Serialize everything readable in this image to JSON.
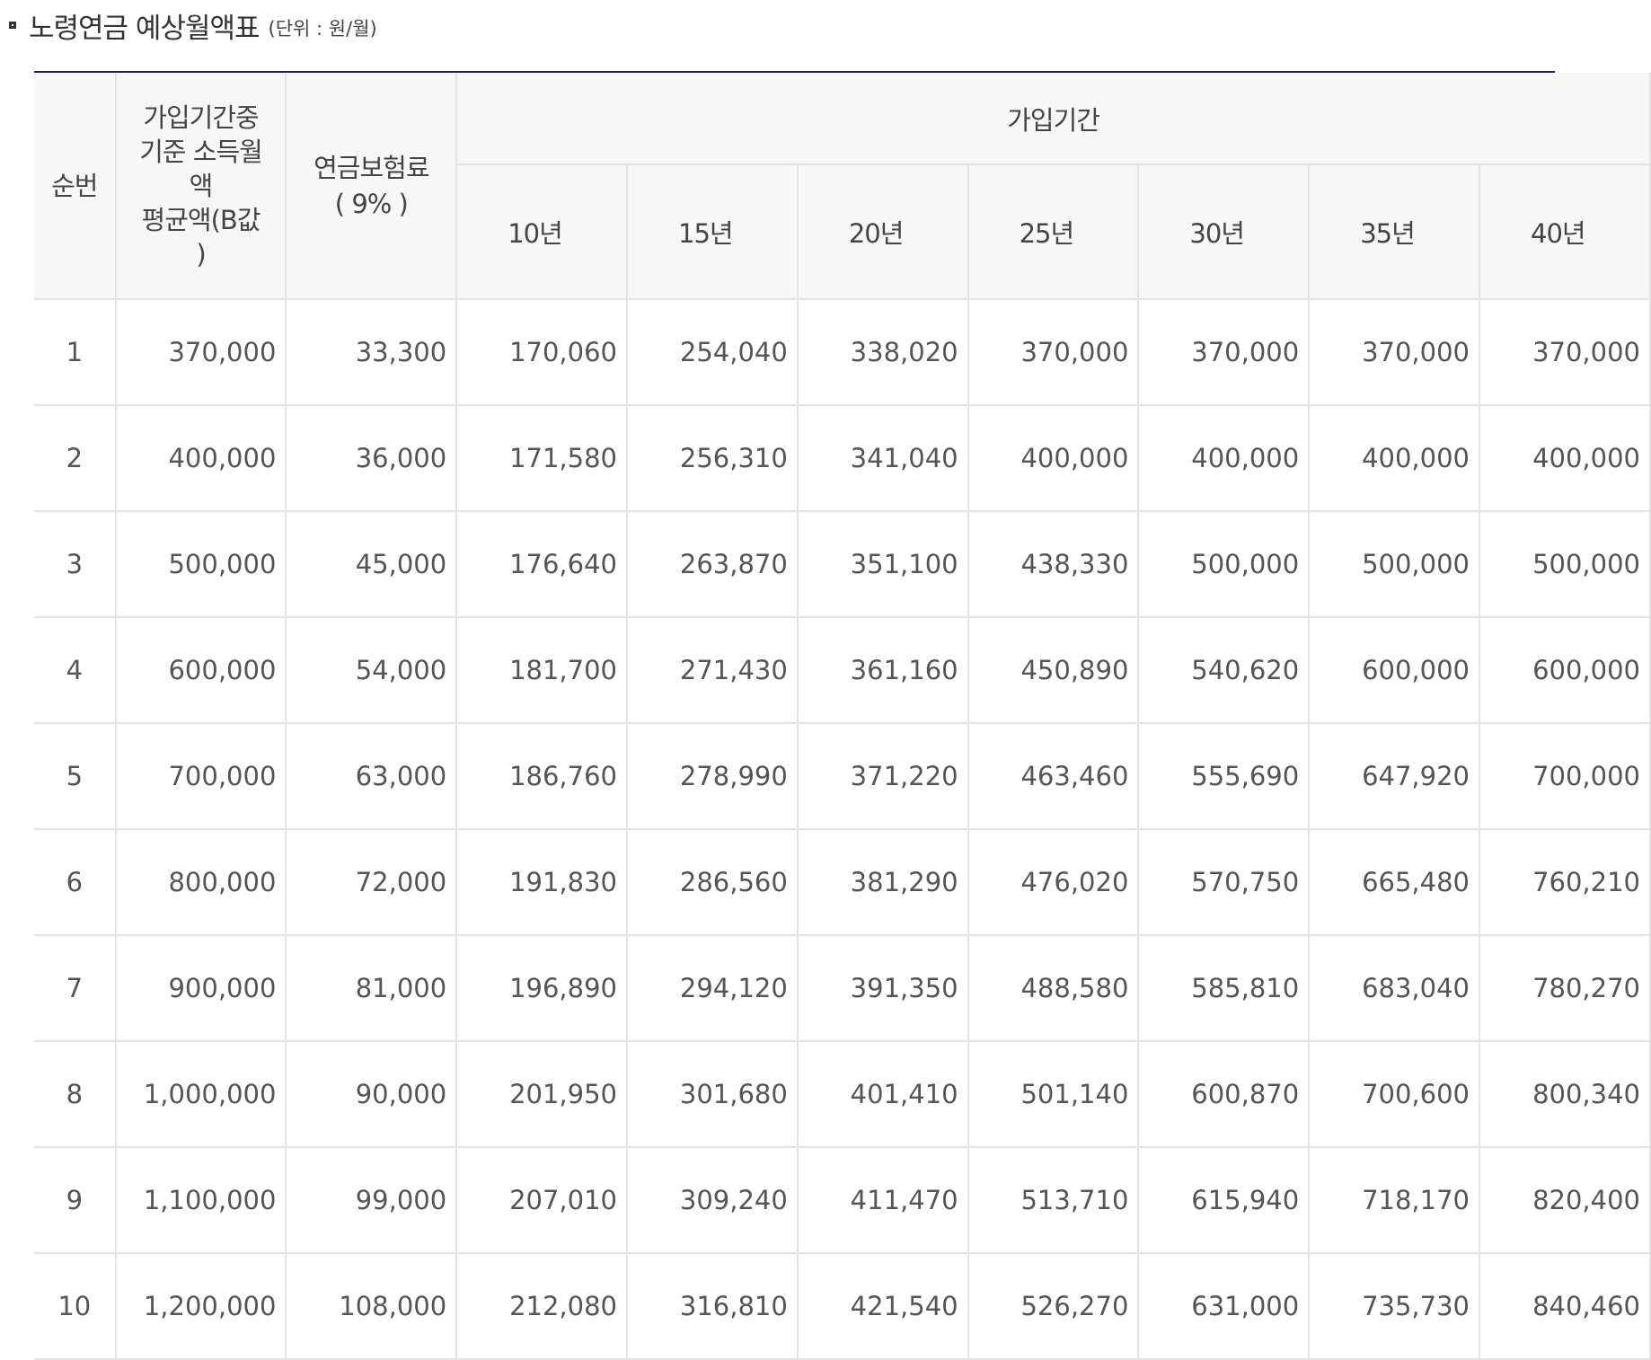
{
  "heading": {
    "title": "노령연금 예상월액표",
    "unit": "(단위 : 원/월)"
  },
  "table": {
    "headers": {
      "no": "순번",
      "income_line1": "가입기간중",
      "income_line2": "기준 소득월",
      "income_line3": "액",
      "income_line4": "평균액(B값",
      "income_line5": ")",
      "premium_line1": "연금보험료",
      "premium_line2": "( 9% )",
      "period": "가입기간",
      "years": [
        "10년",
        "15년",
        "20년",
        "25년",
        "30년",
        "35년",
        "40년"
      ]
    },
    "rows": [
      {
        "no": "1",
        "income": "370,000",
        "premium": "33,300",
        "amounts": [
          "170,060",
          "254,040",
          "338,020",
          "370,000",
          "370,000",
          "370,000",
          "370,000"
        ]
      },
      {
        "no": "2",
        "income": "400,000",
        "premium": "36,000",
        "amounts": [
          "171,580",
          "256,310",
          "341,040",
          "400,000",
          "400,000",
          "400,000",
          "400,000"
        ]
      },
      {
        "no": "3",
        "income": "500,000",
        "premium": "45,000",
        "amounts": [
          "176,640",
          "263,870",
          "351,100",
          "438,330",
          "500,000",
          "500,000",
          "500,000"
        ]
      },
      {
        "no": "4",
        "income": "600,000",
        "premium": "54,000",
        "amounts": [
          "181,700",
          "271,430",
          "361,160",
          "450,890",
          "540,620",
          "600,000",
          "600,000"
        ]
      },
      {
        "no": "5",
        "income": "700,000",
        "premium": "63,000",
        "amounts": [
          "186,760",
          "278,990",
          "371,220",
          "463,460",
          "555,690",
          "647,920",
          "700,000"
        ]
      },
      {
        "no": "6",
        "income": "800,000",
        "premium": "72,000",
        "amounts": [
          "191,830",
          "286,560",
          "381,290",
          "476,020",
          "570,750",
          "665,480",
          "760,210"
        ]
      },
      {
        "no": "7",
        "income": "900,000",
        "premium": "81,000",
        "amounts": [
          "196,890",
          "294,120",
          "391,350",
          "488,580",
          "585,810",
          "683,040",
          "780,270"
        ]
      },
      {
        "no": "8",
        "income": "1,000,000",
        "premium": "90,000",
        "amounts": [
          "201,950",
          "301,680",
          "401,410",
          "501,140",
          "600,870",
          "700,600",
          "800,340"
        ]
      },
      {
        "no": "9",
        "income": "1,100,000",
        "premium": "99,000",
        "amounts": [
          "207,010",
          "309,240",
          "411,470",
          "513,710",
          "615,940",
          "718,170",
          "820,400"
        ]
      },
      {
        "no": "10",
        "income": "1,200,000",
        "premium": "108,000",
        "amounts": [
          "212,080",
          "316,810",
          "421,540",
          "526,270",
          "631,000",
          "735,730",
          "840,460"
        ]
      }
    ]
  }
}
